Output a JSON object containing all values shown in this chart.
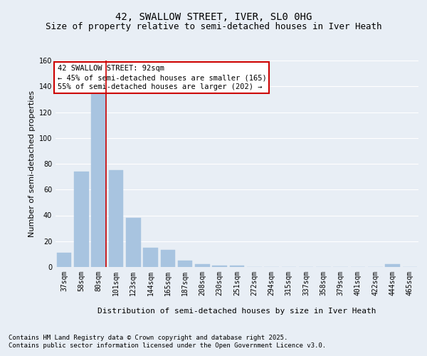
{
  "title_line1": "42, SWALLOW STREET, IVER, SL0 0HG",
  "title_line2": "Size of property relative to semi-detached houses in Iver Heath",
  "xlabel": "Distribution of semi-detached houses by size in Iver Heath",
  "ylabel": "Number of semi-detached properties",
  "categories": [
    "37sqm",
    "58sqm",
    "80sqm",
    "101sqm",
    "123sqm",
    "144sqm",
    "165sqm",
    "187sqm",
    "208sqm",
    "230sqm",
    "251sqm",
    "272sqm",
    "294sqm",
    "315sqm",
    "337sqm",
    "358sqm",
    "379sqm",
    "401sqm",
    "422sqm",
    "444sqm",
    "465sqm"
  ],
  "values": [
    11,
    74,
    134,
    75,
    38,
    15,
    13,
    5,
    2,
    1,
    1,
    0,
    0,
    0,
    0,
    0,
    0,
    0,
    0,
    2,
    0
  ],
  "bar_color": "#a8c4e0",
  "bar_edge_color": "#a8c4e0",
  "vline_color": "#cc0000",
  "annotation_text": "42 SWALLOW STREET: 92sqm\n← 45% of semi-detached houses are smaller (165)\n55% of semi-detached houses are larger (202) →",
  "annotation_box_color": "#ffffff",
  "annotation_box_edge": "#cc0000",
  "ylim": [
    0,
    160
  ],
  "yticks": [
    0,
    20,
    40,
    60,
    80,
    100,
    120,
    140,
    160
  ],
  "background_color": "#e8eef5",
  "plot_bg_color": "#e8eef5",
  "grid_color": "#ffffff",
  "footer_line1": "Contains HM Land Registry data © Crown copyright and database right 2025.",
  "footer_line2": "Contains public sector information licensed under the Open Government Licence v3.0.",
  "title_fontsize": 10,
  "subtitle_fontsize": 9,
  "axis_label_fontsize": 8,
  "tick_fontsize": 7,
  "annotation_fontsize": 7.5,
  "footer_fontsize": 6.5
}
